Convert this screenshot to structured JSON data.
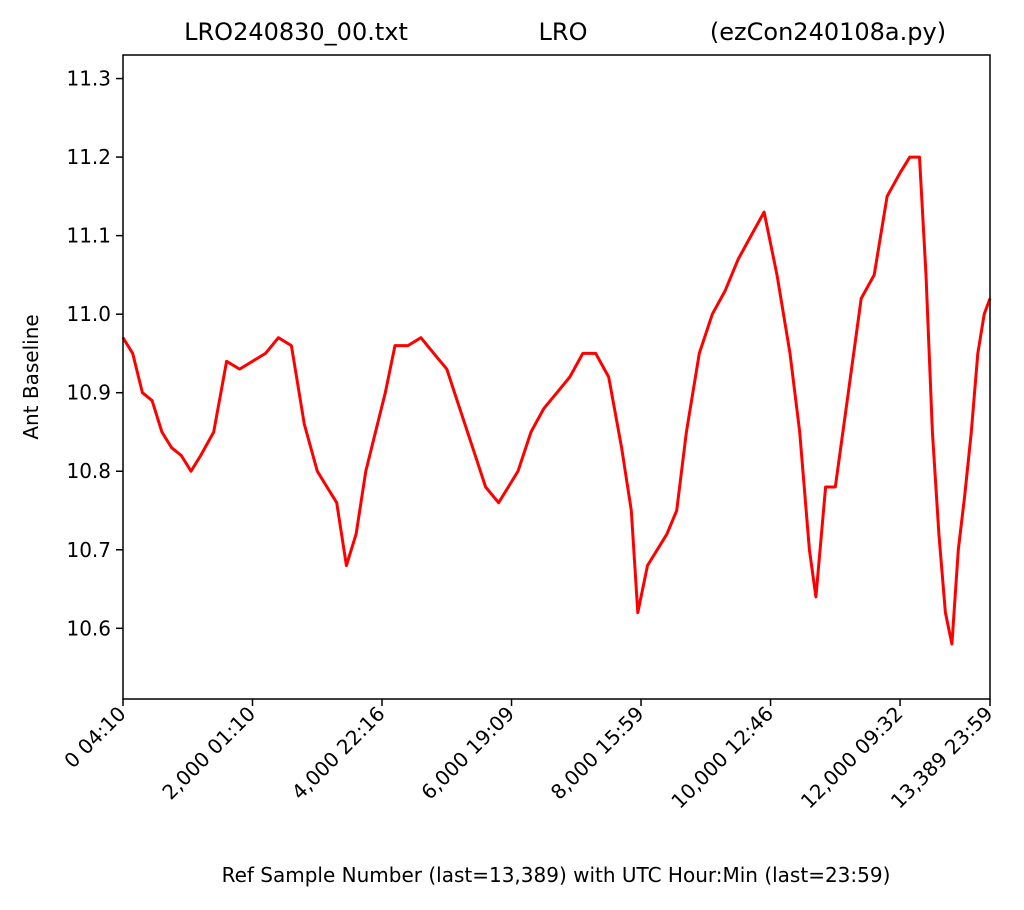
{
  "chart_data": {
    "type": "line",
    "title_left": "LRO240830_00.txt",
    "title_center": "LRO",
    "title_right": "(ezCon240108a.py)",
    "xlabel": "Ref Sample Number (last=13,389) with UTC Hour:Min (last=23:59)",
    "ylabel": "Ant Baseline",
    "xlim": [
      0,
      13389
    ],
    "ylim": [
      10.51,
      11.33
    ],
    "grid": false,
    "x_ticks": [
      {
        "value": 0,
        "label": "0  04:10"
      },
      {
        "value": 2000,
        "label": "2,000  01:10"
      },
      {
        "value": 4000,
        "label": "4,000  22:16"
      },
      {
        "value": 6000,
        "label": "6,000  19:09"
      },
      {
        "value": 8000,
        "label": "8,000  15:59"
      },
      {
        "value": 10000,
        "label": "10,000  12:46"
      },
      {
        "value": 12000,
        "label": "12,000  09:32"
      },
      {
        "value": 13389,
        "label": "13,389  23:59"
      }
    ],
    "y_ticks": [
      {
        "value": 10.6,
        "label": "10.6"
      },
      {
        "value": 10.7,
        "label": "10.7"
      },
      {
        "value": 10.8,
        "label": "10.8"
      },
      {
        "value": 10.9,
        "label": "10.9"
      },
      {
        "value": 11.0,
        "label": "11.0"
      },
      {
        "value": 11.1,
        "label": "11.1"
      },
      {
        "value": 11.2,
        "label": "11.2"
      },
      {
        "value": 11.3,
        "label": "11.3"
      }
    ],
    "series": [
      {
        "color": "#ff0000",
        "x": [
          0,
          150,
          300,
          450,
          600,
          750,
          900,
          1050,
          1200,
          1400,
          1600,
          1800,
          2000,
          2200,
          2400,
          2600,
          2800,
          3000,
          3150,
          3300,
          3450,
          3600,
          3750,
          3900,
          4050,
          4200,
          4400,
          4600,
          4800,
          5000,
          5200,
          5400,
          5600,
          5800,
          5950,
          6100,
          6300,
          6500,
          6700,
          6900,
          7100,
          7300,
          7500,
          7700,
          7850,
          7950,
          8100,
          8250,
          8400,
          8550,
          8700,
          8900,
          9100,
          9300,
          9500,
          9700,
          9900,
          10100,
          10300,
          10450,
          10600,
          10700,
          10850,
          11000,
          11200,
          11400,
          11600,
          11800,
          12000,
          12150,
          12300,
          12400,
          12500,
          12600,
          12700,
          12800,
          12900,
          13000,
          13100,
          13200,
          13300,
          13389
        ],
        "y": [
          10.97,
          10.95,
          10.9,
          10.89,
          10.85,
          10.83,
          10.82,
          10.8,
          10.82,
          10.85,
          10.94,
          10.93,
          10.94,
          10.95,
          10.97,
          10.96,
          10.86,
          10.8,
          10.78,
          10.76,
          10.68,
          10.72,
          10.8,
          10.85,
          10.9,
          10.96,
          10.96,
          10.97,
          10.95,
          10.93,
          10.88,
          10.83,
          10.78,
          10.76,
          10.78,
          10.8,
          10.85,
          10.88,
          10.9,
          10.92,
          10.95,
          10.95,
          10.92,
          10.83,
          10.75,
          10.62,
          10.68,
          10.7,
          10.72,
          10.75,
          10.85,
          10.95,
          11.0,
          11.03,
          11.07,
          11.1,
          11.13,
          11.05,
          10.95,
          10.85,
          10.7,
          10.64,
          10.78,
          10.78,
          10.9,
          11.02,
          11.05,
          11.15,
          11.18,
          11.2,
          11.2,
          11.05,
          10.85,
          10.72,
          10.62,
          10.58,
          10.7,
          10.77,
          10.85,
          10.95,
          11.0,
          11.02
        ]
      }
    ]
  }
}
